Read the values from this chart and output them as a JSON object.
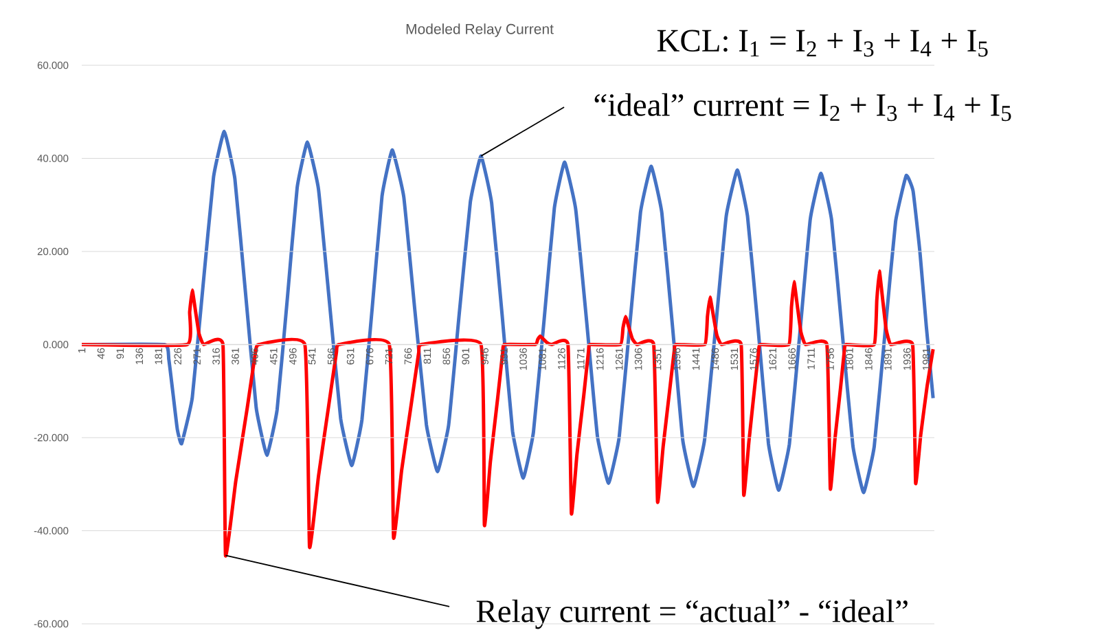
{
  "chart_data": {
    "type": "line",
    "title": "Modeled Relay Current",
    "annotations": [
      "KCL: I$_{1}$ = I$_{2}$ + I$_{3}$ + I$_{4}$ + I$_{5}$",
      {
        "text": "“ideal” current = I$_{2}$ + I$_{3}$ + I$_{4}$ + I$_{5}$",
        "x": 937,
        "y": 40.5
      },
      {
        "text": "Relay current = “actual” - “ideal”",
        "x": 338,
        "y": -45.3
      }
    ],
    "xlim": [
      1,
      2000
    ],
    "xticks": [
      1,
      46,
      91,
      136,
      181,
      226,
      271,
      316,
      361,
      406,
      451,
      496,
      541,
      586,
      631,
      676,
      721,
      766,
      811,
      856,
      901,
      946,
      991,
      1036,
      1081,
      1126,
      1171,
      1216,
      1261,
      1306,
      1351,
      1396,
      1441,
      1486,
      1531,
      1576,
      1621,
      1666,
      1711,
      1756,
      1801,
      1846,
      1891,
      1936,
      1981
    ],
    "ylim": [
      -60,
      60
    ],
    "yticks": [
      {
        "value": -60,
        "label": "-60.000"
      },
      {
        "value": -40,
        "label": "-40.000"
      },
      {
        "value": -20,
        "label": "-20.000"
      },
      {
        "value": 0,
        "label": "0.000"
      },
      {
        "value": 20,
        "label": "20.000"
      },
      {
        "value": 40,
        "label": "40.000"
      },
      {
        "value": 60,
        "label": "60.000"
      }
    ],
    "grid": "y",
    "legend": false,
    "marker": "none",
    "line_style": "solid",
    "series": [
      {
        "color": "#4472c4",
        "x": [
          1,
          195,
          205,
          215,
          225,
          235,
          260,
          285,
          310,
          335,
          360,
          385,
          410,
          435,
          459,
          483,
          506,
          530,
          556,
          582,
          608,
          634,
          658,
          682,
          705,
          729,
          756,
          782,
          809,
          835,
          861,
          886,
          912,
          937,
          962,
          987,
          1011,
          1036,
          1060,
          1085,
          1109,
          1133,
          1159,
          1185,
          1210,
          1236,
          1261,
          1286,
          1311,
          1336,
          1361,
          1386,
          1410,
          1435,
          1461,
          1487,
          1512,
          1538,
          1562,
          1587,
          1611,
          1635,
          1660,
          1685,
          1709,
          1734,
          1759,
          1784,
          1809,
          1834,
          1859,
          1884,
          1909,
          1934,
          1950,
          1966,
          1981,
          1997
        ],
        "values": [
          0,
          0,
          -3.1,
          -10.6,
          -18.2,
          -21.3,
          -11.5,
          12.3,
          36.0,
          45.8,
          35.6,
          11.0,
          -13.6,
          -23.8,
          -14.0,
          9.9,
          33.7,
          43.5,
          33.4,
          8.8,
          -15.9,
          -26.0,
          -16.1,
          7.9,
          31.9,
          41.8,
          31.7,
          7.3,
          -17.2,
          -27.3,
          -17.4,
          6.6,
          30.6,
          40.5,
          30.4,
          5.9,
          -18.6,
          -28.7,
          -18.8,
          5.3,
          29.3,
          39.2,
          29.1,
          4.7,
          -19.7,
          -29.8,
          -19.9,
          4.3,
          28.4,
          38.3,
          28.3,
          3.9,
          -20.5,
          -30.5,
          -20.6,
          3.5,
          27.6,
          37.5,
          27.5,
          3.1,
          -21.3,
          -31.3,
          -21.4,
          2.8,
          26.9,
          36.8,
          26.8,
          2.5,
          -21.8,
          -31.8,
          -21.9,
          2.3,
          26.4,
          36.3,
          33.0,
          20.0,
          4.0,
          -11.5
        ]
      },
      {
        "color": "#ff0000",
        "x": [
          1,
          248,
          254,
          260,
          268,
          276,
          287,
          332,
          338,
          362,
          389,
          408,
          416,
          524,
          535,
          556,
          580,
          598,
          604,
          722,
          732,
          751,
          774,
          791,
          797,
          937,
          945,
          959,
          976,
          988,
          992,
          1064,
          1070,
          1076,
          1084,
          1092,
          1103,
          1141,
          1149,
          1162,
          1178,
          1189,
          1193,
          1264,
          1270,
          1276,
          1284,
          1292,
          1303,
          1342,
          1351,
          1364,
          1379,
          1390,
          1394,
          1462,
          1468,
          1474,
          1482,
          1490,
          1501,
          1547,
          1553,
          1565,
          1578,
          1588,
          1592,
          1659,
          1665,
          1671,
          1679,
          1687,
          1698,
          1748,
          1756,
          1767,
          1780,
          1789,
          1793,
          1859,
          1865,
          1871,
          1879,
          1887,
          1898,
          1949,
          1956,
          1968,
          1983,
          1997
        ],
        "values": [
          0,
          0,
          7.0,
          11.7,
          7.0,
          2.3,
          0,
          0,
          -45.3,
          -29.4,
          -13.6,
          -1.8,
          0,
          0,
          -43.5,
          -28.3,
          -13.1,
          -1.7,
          0,
          0,
          -41.5,
          -27.0,
          -12.5,
          -1.7,
          0,
          0,
          -38.8,
          -25.2,
          -11.6,
          -1.6,
          0,
          0,
          1.1,
          1.8,
          1.1,
          0.4,
          0,
          0,
          -36.3,
          -23.6,
          -10.9,
          -1.5,
          0,
          0,
          3.6,
          6.0,
          3.6,
          1.2,
          0,
          0,
          -33.8,
          -22.0,
          -10.1,
          -1.4,
          0,
          0,
          6.1,
          10.2,
          6.1,
          2.0,
          0,
          0,
          -32.3,
          -21.0,
          -9.7,
          -1.3,
          0,
          0,
          8.1,
          13.5,
          8.1,
          2.7,
          0,
          0,
          -31.0,
          -20.2,
          -9.3,
          -1.2,
          0,
          0,
          9.5,
          15.8,
          9.5,
          3.2,
          0,
          0,
          -29.8,
          -19.4,
          -8.9,
          -1.0
        ]
      }
    ]
  }
}
